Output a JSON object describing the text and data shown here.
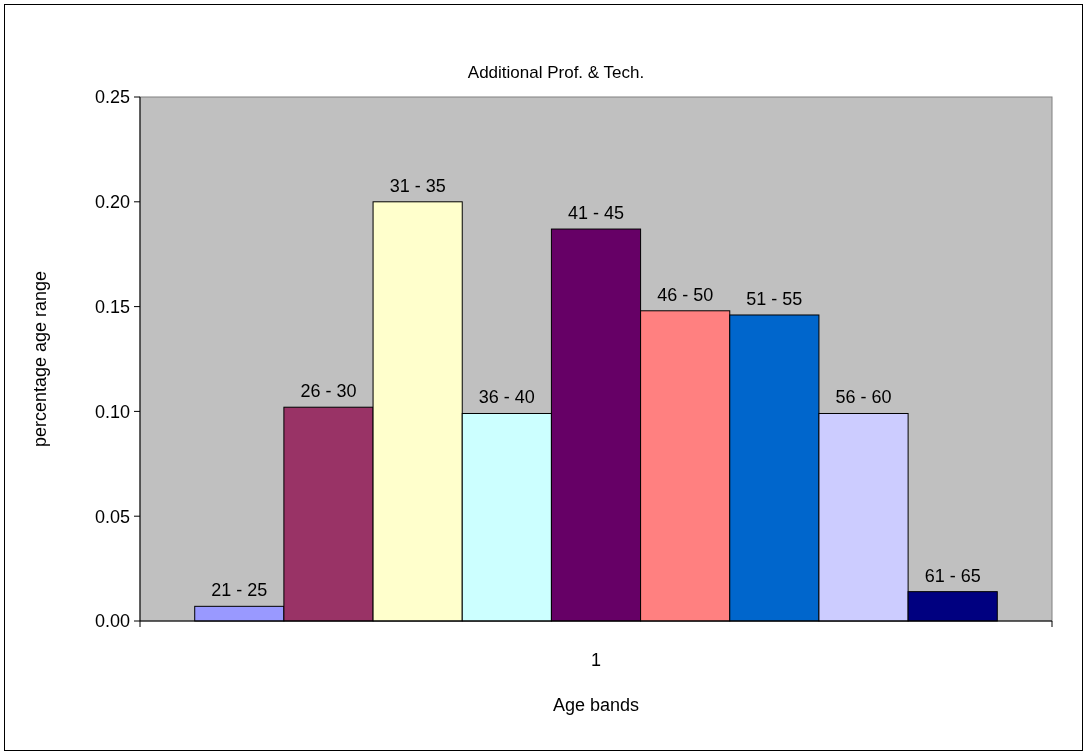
{
  "chart_data": {
    "type": "bar",
    "title": "Additional  Prof. & Tech.",
    "xlabel": "Age bands",
    "ylabel": "percentage age range",
    "categories": [
      "1"
    ],
    "series": [
      {
        "name": "21 - 25",
        "color": "#9999ff",
        "values": [
          0.007
        ]
      },
      {
        "name": "26 - 30",
        "color": "#993366",
        "values": [
          0.102
        ]
      },
      {
        "name": "31 - 35",
        "color": "#ffffcc",
        "values": [
          0.2
        ]
      },
      {
        "name": "36 - 40",
        "color": "#ccffff",
        "values": [
          0.099
        ]
      },
      {
        "name": "41 - 45",
        "color": "#660066",
        "values": [
          0.187
        ]
      },
      {
        "name": "46 - 50",
        "color": "#ff8080",
        "values": [
          0.148
        ]
      },
      {
        "name": "51 - 55",
        "color": "#0066cc",
        "values": [
          0.146
        ]
      },
      {
        "name": "56 - 60",
        "color": "#ccccff",
        "values": [
          0.099
        ]
      },
      {
        "name": "61 - 65",
        "color": "#000080",
        "values": [
          0.014
        ]
      }
    ],
    "ylim": [
      0,
      0.25
    ],
    "yticks": [
      {
        "value": 0,
        "label": "0.00"
      },
      0.05,
      {
        "value": 0.1,
        "label": "0.10"
      },
      0.15,
      {
        "value": 0.2,
        "label": "0.20"
      },
      0.25
    ],
    "grid": false,
    "legend": false
  }
}
